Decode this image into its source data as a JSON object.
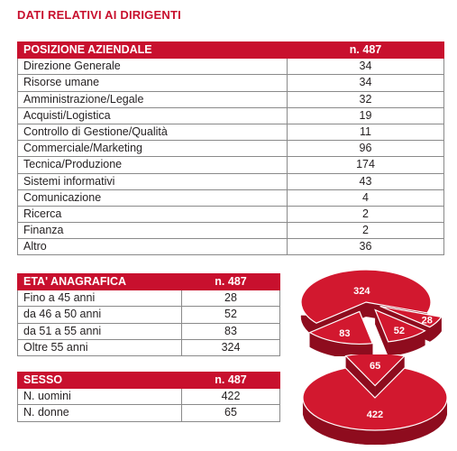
{
  "title": "DATI RELATIVI AI DIRIGENTI",
  "posizione": {
    "header": "POSIZIONE AZIENDALE",
    "total": "n. 487",
    "rows": [
      {
        "label": "Direzione Generale",
        "value": "34"
      },
      {
        "label": "Risorse umane",
        "value": "34"
      },
      {
        "label": "Amministrazione/Legale",
        "value": "32"
      },
      {
        "label": "Acquisti/Logistica",
        "value": "19"
      },
      {
        "label": "Controllo di Gestione/Qualità",
        "value": "11"
      },
      {
        "label": "Commerciale/Marketing",
        "value": "96"
      },
      {
        "label": "Tecnica/Produzione",
        "value": "174"
      },
      {
        "label": "Sistemi informativi",
        "value": "43"
      },
      {
        "label": "Comunicazione",
        "value": "4"
      },
      {
        "label": "Ricerca",
        "value": "2"
      },
      {
        "label": "Finanza",
        "value": "2"
      },
      {
        "label": "Altro",
        "value": "36"
      }
    ]
  },
  "eta": {
    "header": "ETA' ANAGRAFICA",
    "total": "n. 487",
    "rows": [
      {
        "label": "Fino a 45 anni",
        "value": "28"
      },
      {
        "label": "da 46 a 50 anni",
        "value": "52"
      },
      {
        "label": "da 51 a 55 anni",
        "value": "83"
      },
      {
        "label": "Oltre 55 anni",
        "value": "324"
      }
    ]
  },
  "sesso": {
    "header": "SESSO",
    "total": "n. 487",
    "rows": [
      {
        "label": "N. uomini",
        "value": "422"
      },
      {
        "label": "N. donne",
        "value": "65"
      }
    ]
  },
  "chart_data": [
    {
      "type": "pie",
      "values": [
        324,
        28,
        52,
        83
      ],
      "labels": [
        "324",
        "28",
        "52",
        "83"
      ],
      "color": "#c8102e"
    },
    {
      "type": "pie",
      "values": [
        422,
        65
      ],
      "labels": [
        "422",
        "65"
      ],
      "color": "#c8102e"
    }
  ]
}
